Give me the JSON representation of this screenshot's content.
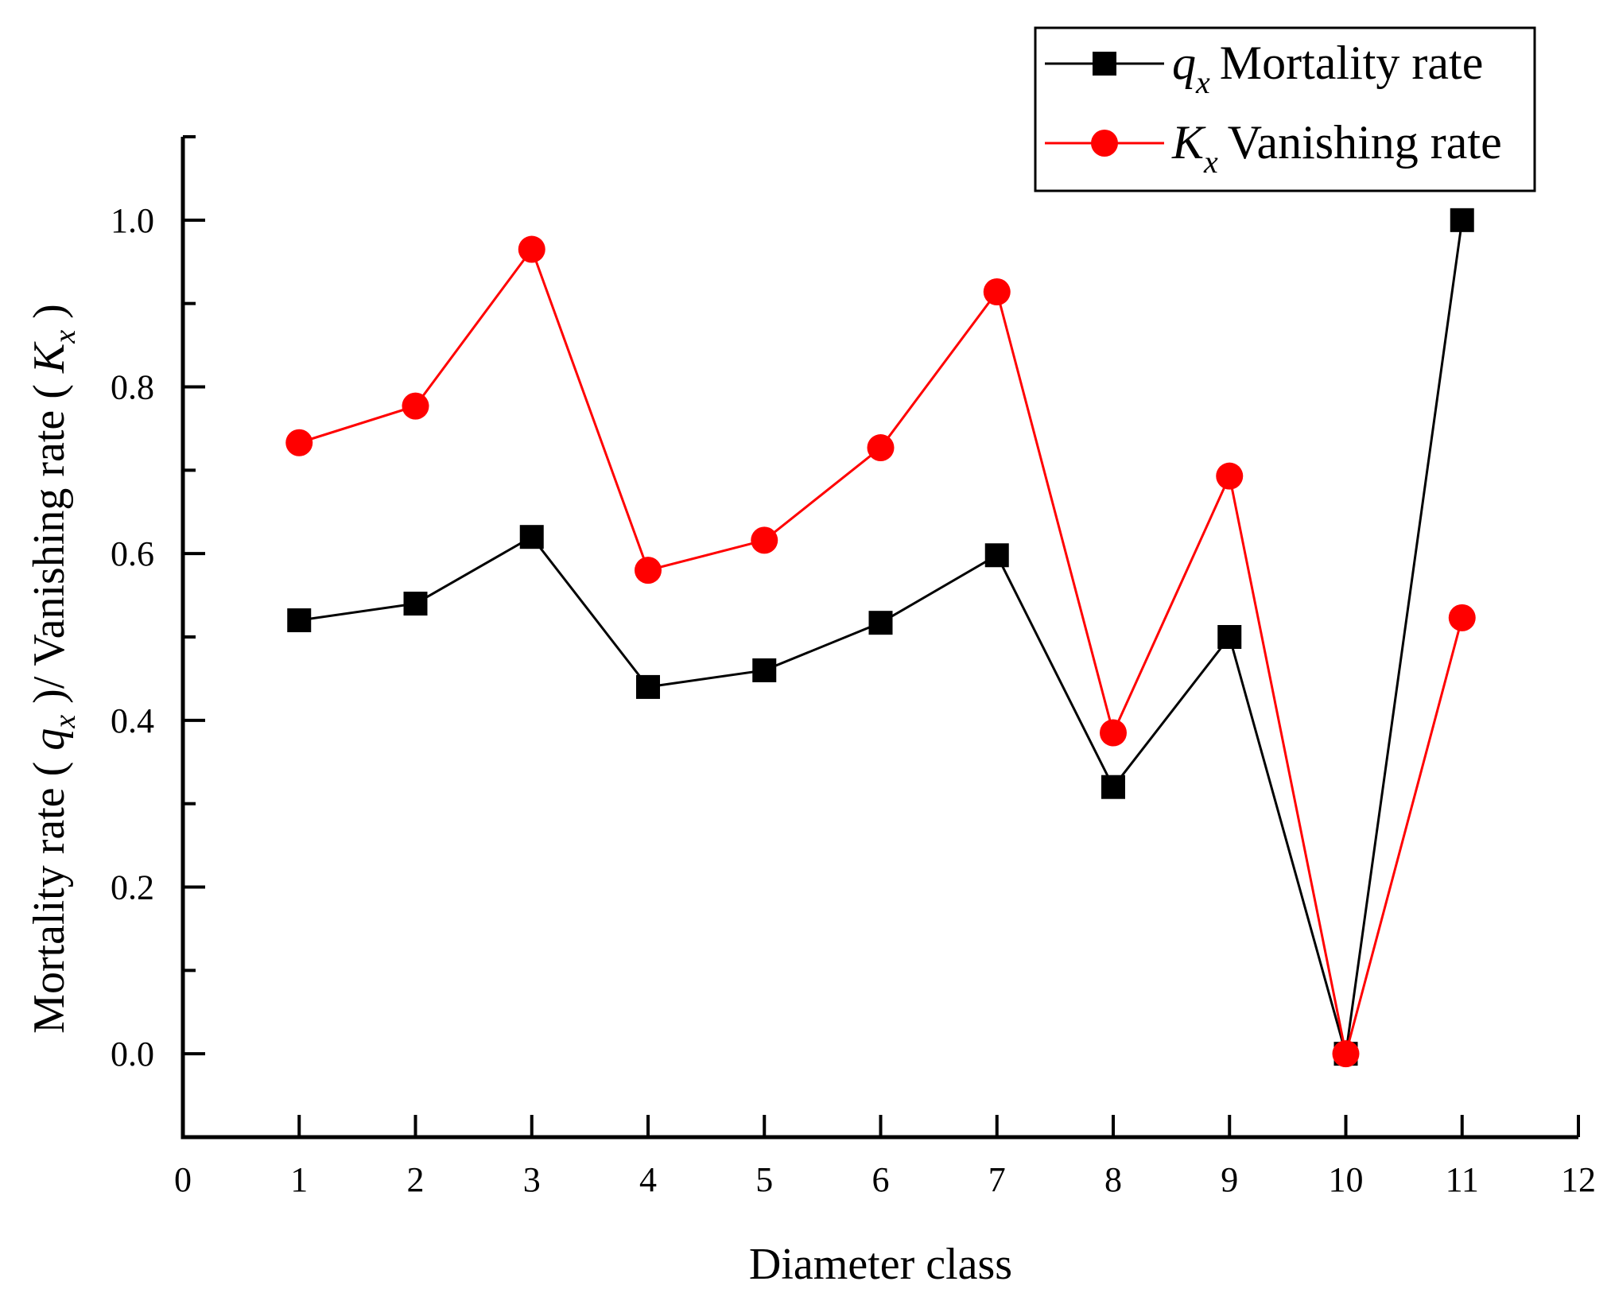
{
  "chart_data": {
    "type": "line",
    "title": "",
    "xlabel": "Diameter class",
    "ylabel_parts": {
      "part1": "Mortality rate ( ",
      "q": "q",
      "sub": "x",
      "part2": " )/ Vanishing rate ( ",
      "k": "K",
      "part3": " )"
    },
    "xlim": [
      0,
      12
    ],
    "ylim": [
      -0.1,
      1.1
    ],
    "xticks": [
      "0",
      "1",
      "2",
      "3",
      "4",
      "5",
      "6",
      "7",
      "8",
      "9",
      "10",
      "11",
      "12"
    ],
    "yticks": [
      "0.0",
      "0.2",
      "0.4",
      "0.6",
      "0.8",
      "1.0"
    ],
    "x": [
      1,
      2,
      3,
      4,
      5,
      6,
      7,
      8,
      9,
      10,
      11
    ],
    "series": [
      {
        "name": "q_x Mortality rate",
        "legend_symbol": "q",
        "legend_sub": "x",
        "legend_label": "Mortality rate",
        "color": "#000000",
        "marker": "square",
        "values": [
          0.52,
          0.54,
          0.62,
          0.44,
          0.46,
          0.517,
          0.598,
          0.32,
          0.5,
          0.0,
          1.0
        ]
      },
      {
        "name": "K_x Vanishing rate",
        "legend_symbol": "K",
        "legend_sub": "x",
        "legend_label": "Vanishing rate",
        "color": "#ff0000",
        "marker": "circle",
        "values": [
          0.733,
          0.777,
          0.965,
          0.58,
          0.616,
          0.727,
          0.914,
          0.385,
          0.693,
          0.0,
          0.523
        ]
      }
    ],
    "legend_position": "top-right",
    "grid": false
  }
}
